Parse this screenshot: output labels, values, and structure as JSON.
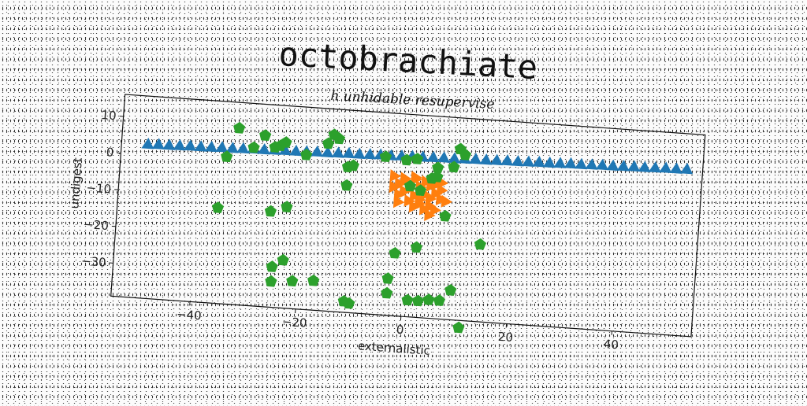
{
  "chart_data": {
    "type": "scatter",
    "title": "octobrachiate",
    "subtitle": "h unhidable resupervise",
    "xlabel": "externalistic",
    "ylabel": "undigest",
    "xlim": [
      -55,
      55
    ],
    "ylim": [
      -39,
      16
    ],
    "xticks": [
      "−40",
      "−20",
      "0",
      "20",
      "40"
    ],
    "xtick_values": [
      -40,
      -20,
      0,
      20,
      40
    ],
    "yticks": [
      "10",
      "0",
      "−10",
      "−20",
      "−30"
    ],
    "ytick_values": [
      10,
      0,
      -10,
      -20,
      -30
    ],
    "grid": false,
    "series": [
      {
        "marker": "triangle-up",
        "color": "#1f77b4",
        "points": [
          [
            -50,
            3
          ],
          [
            -48,
            3.1
          ],
          [
            -46,
            3.1
          ],
          [
            -44,
            3.2
          ],
          [
            -42,
            3.3
          ],
          [
            -40,
            3.3
          ],
          [
            -38,
            3.4
          ],
          [
            -36,
            3.5
          ],
          [
            -34,
            3.5
          ],
          [
            -32,
            3.6
          ],
          [
            -30,
            3.7
          ],
          [
            -28,
            3.7
          ],
          [
            -26,
            3.8
          ],
          [
            -24,
            3.9
          ],
          [
            -22,
            3.9
          ],
          [
            -20,
            4
          ],
          [
            -18,
            4.1
          ],
          [
            -16,
            4.1
          ],
          [
            -14,
            4.2
          ],
          [
            -12,
            4.3
          ],
          [
            -10,
            4.3
          ],
          [
            -8,
            4.4
          ],
          [
            -6,
            4.5
          ],
          [
            -4,
            4.5
          ],
          [
            -2,
            4.6
          ],
          [
            0,
            4.7
          ],
          [
            2,
            4.7
          ],
          [
            4,
            4.8
          ],
          [
            6,
            4.9
          ],
          [
            8,
            4.9
          ],
          [
            10,
            5
          ],
          [
            12,
            5.1
          ],
          [
            14,
            5.1
          ],
          [
            16,
            5.2
          ],
          [
            18,
            5.3
          ],
          [
            20,
            5.3
          ],
          [
            22,
            5.4
          ],
          [
            24,
            5.5
          ],
          [
            26,
            5.5
          ],
          [
            28,
            5.6
          ],
          [
            30,
            5.7
          ],
          [
            32,
            5.7
          ],
          [
            34,
            5.8
          ],
          [
            36,
            5.9
          ],
          [
            38,
            5.9
          ],
          [
            40,
            6
          ],
          [
            42,
            6.1
          ],
          [
            44,
            6.1
          ],
          [
            46,
            6.2
          ],
          [
            48,
            6.3
          ],
          [
            50,
            6.3
          ],
          [
            52,
            6.4
          ]
        ]
      },
      {
        "marker": "triangle-right",
        "color": "#ff7f0e",
        "points": [
          [
            -3,
            -1
          ],
          [
            -1,
            -1.5
          ],
          [
            1,
            -1
          ],
          [
            3,
            -2
          ],
          [
            4,
            -3
          ],
          [
            5,
            -2.5
          ],
          [
            2,
            -3.5
          ],
          [
            0,
            -4
          ],
          [
            -2,
            -3
          ],
          [
            -1,
            -5
          ],
          [
            1,
            -6
          ],
          [
            3,
            -5.5
          ],
          [
            5,
            -5
          ],
          [
            6,
            -4
          ],
          [
            4,
            -6.5
          ],
          [
            2,
            -7
          ],
          [
            0,
            -7.5
          ],
          [
            -2,
            -6
          ],
          [
            -3,
            -4
          ],
          [
            6,
            -6.5
          ],
          [
            7,
            -7
          ],
          [
            2,
            -8
          ],
          [
            4,
            -8.5
          ],
          [
            1,
            -9
          ],
          [
            3,
            -9.5
          ],
          [
            5,
            -9.5
          ],
          [
            -1,
            -2
          ],
          [
            1,
            -1.5
          ],
          [
            6,
            -2
          ],
          [
            -2,
            -8
          ],
          [
            4,
            -11
          ]
        ]
      },
      {
        "marker": "pentagon",
        "color": "#2ca02c",
        "points": [
          [
            -33,
            9
          ],
          [
            -35,
            1
          ],
          [
            -28,
            7.5
          ],
          [
            -25,
            5
          ],
          [
            -30,
            4
          ],
          [
            -24,
            6
          ],
          [
            -26,
            4.5
          ],
          [
            -20,
            3
          ],
          [
            -15,
            9
          ],
          [
            -16,
            6.5
          ],
          [
            -14,
            8
          ],
          [
            -12,
            0.5
          ],
          [
            -11,
            1
          ],
          [
            -12,
            -4.5
          ],
          [
            -5,
            4
          ],
          [
            -1,
            3.5
          ],
          [
            1,
            4
          ],
          [
            5,
            2
          ],
          [
            5,
            -0.5
          ],
          [
            4,
            -1
          ],
          [
            9,
            7.5
          ],
          [
            10,
            6
          ],
          [
            8,
            2.5
          ],
          [
            0,
            -3.5
          ],
          [
            2,
            -4.5
          ],
          [
            -36,
            -13
          ],
          [
            -26,
            -13
          ],
          [
            -23,
            -11.5
          ],
          [
            -25,
            -28
          ],
          [
            -23,
            -26
          ],
          [
            -25,
            -32
          ],
          [
            -21,
            -31.5
          ],
          [
            -17,
            -31
          ],
          [
            -10,
            -36.5
          ],
          [
            -11,
            -36
          ],
          [
            14,
            -18
          ],
          [
            2,
            -20
          ],
          [
            -2,
            -22
          ],
          [
            -3,
            -29
          ],
          [
            -3,
            -33
          ],
          [
            1,
            -34.5
          ],
          [
            3,
            -34.5
          ],
          [
            5,
            -34
          ],
          [
            7,
            -34
          ],
          [
            9,
            -31
          ],
          [
            7,
            -11
          ],
          [
            11,
            -41
          ]
        ]
      }
    ]
  }
}
